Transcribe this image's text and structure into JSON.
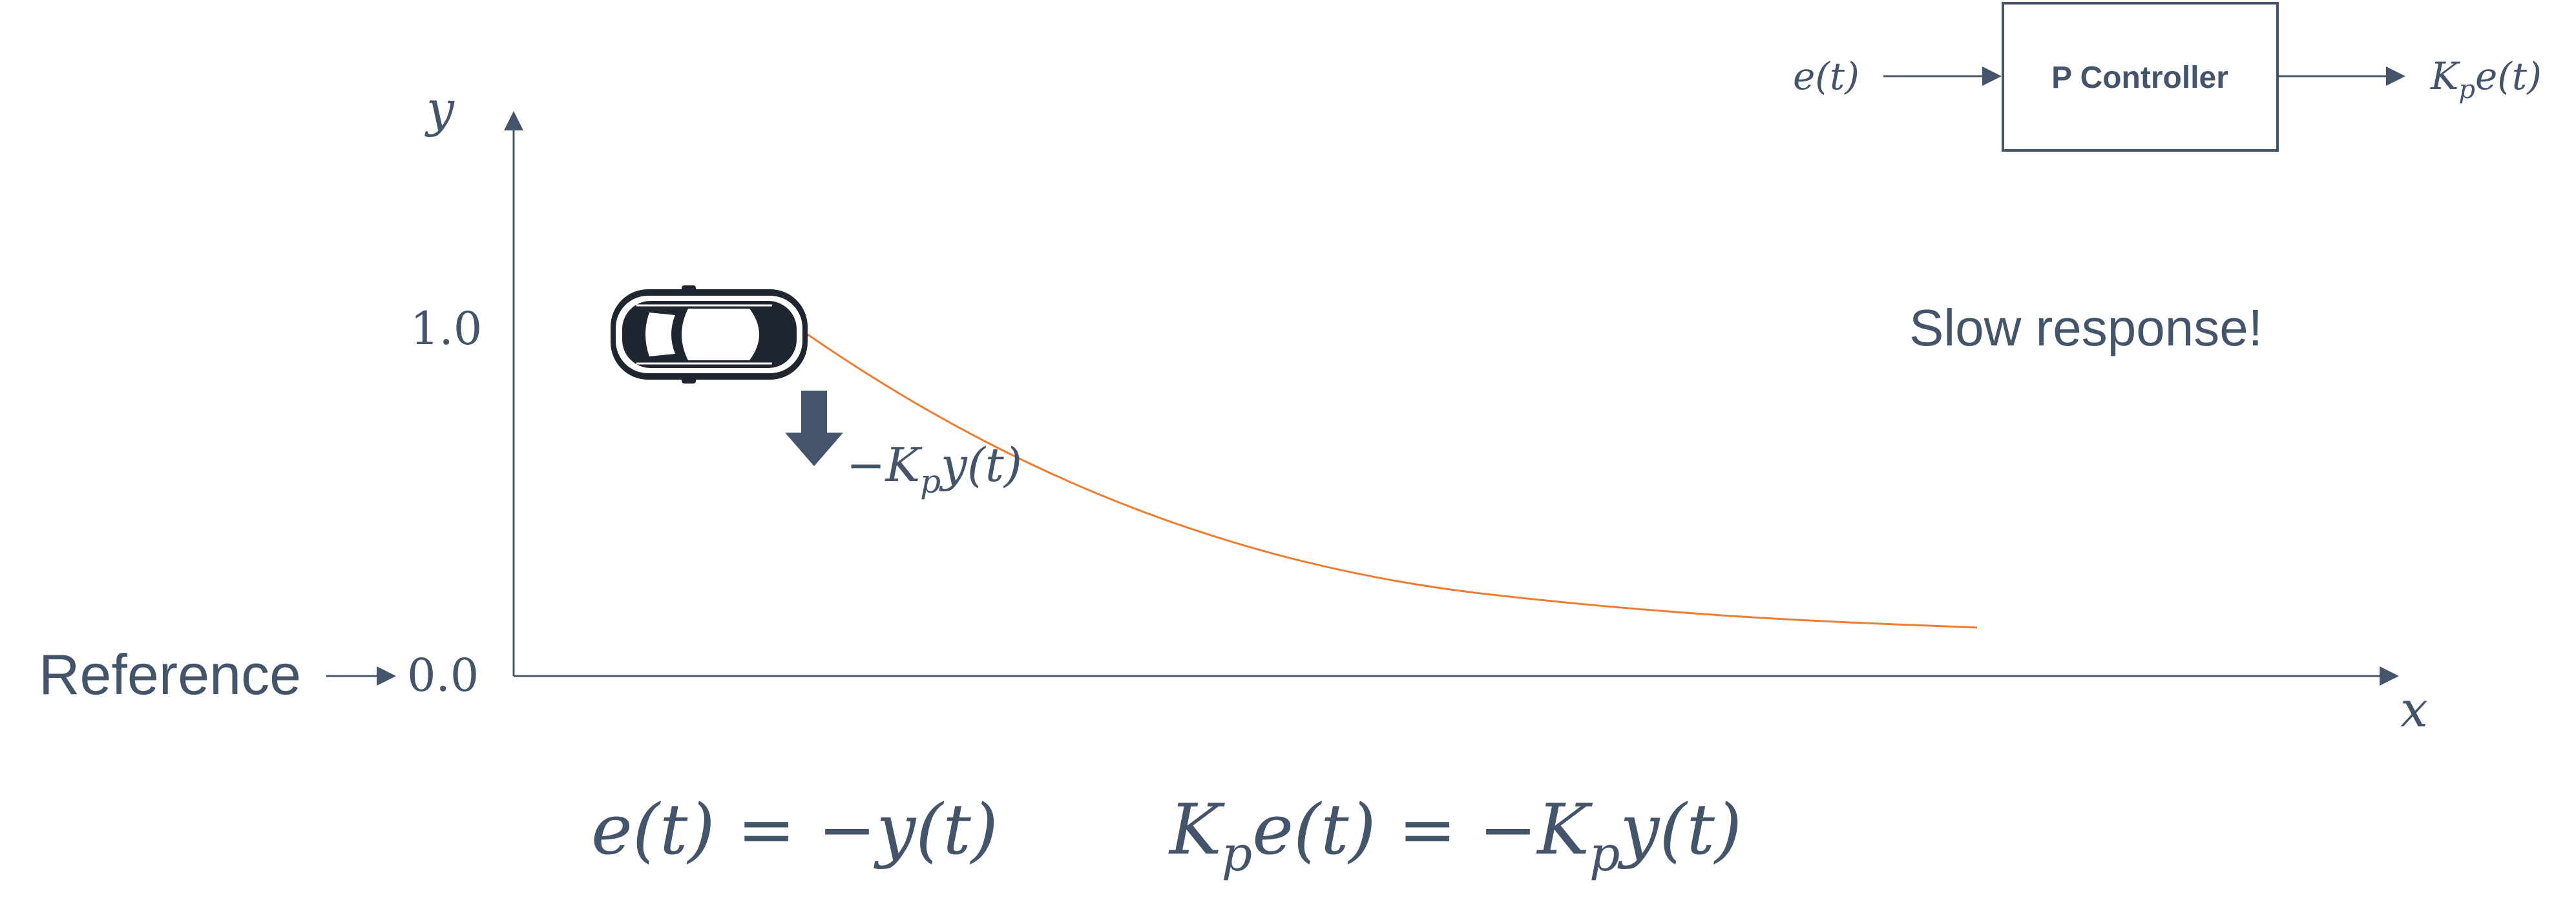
{
  "colors": {
    "ink": "#44546a",
    "curve": "#ed7d31",
    "car": "#1f2630",
    "arrow": "#44546a"
  },
  "labels": {
    "y_axis": "y",
    "x_axis": "x",
    "tick_one": "1.0",
    "tick_zero": "0.0",
    "reference": "Reference",
    "control_signal": "−K",
    "control_signal_sub": "p",
    "control_signal_tail": "y(t)",
    "note": "Slow response!"
  },
  "block": {
    "title": "P Controller",
    "input": "e(t)",
    "output_k": "K",
    "output_sub": "p",
    "output_tail": "e(t)"
  },
  "equations": {
    "error_eq": "e(t) = −y(t)",
    "control_k": "K",
    "control_sub": "p",
    "control_mid": "e(t) = −K",
    "control_sub2": "p",
    "control_tail": "y(t)"
  },
  "icons": {
    "vehicle": "car-top-view-icon",
    "force": "down-arrow-icon"
  }
}
